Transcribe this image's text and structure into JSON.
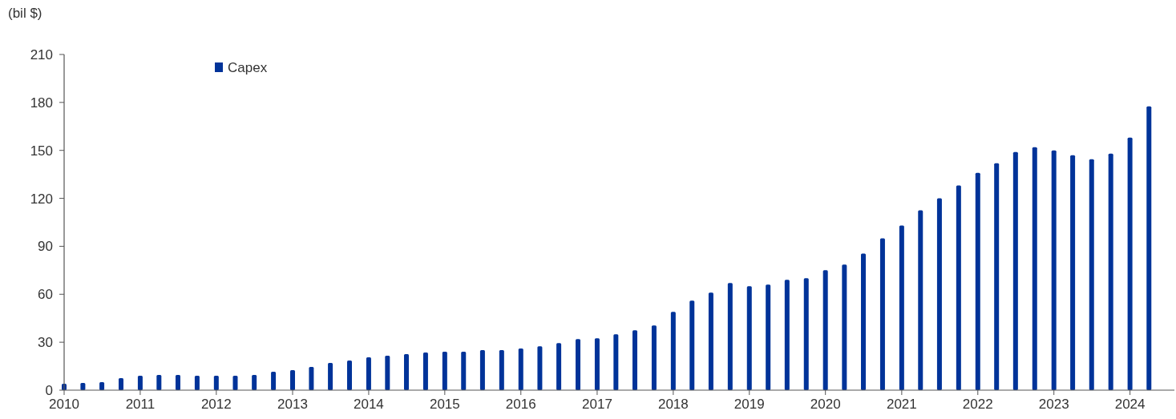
{
  "chart_data": {
    "type": "bar",
    "ylabel": "(bil $)",
    "x": [
      "2010-01",
      "2010-04",
      "2010-07",
      "2010-10",
      "2011-01",
      "2011-04",
      "2011-07",
      "2011-10",
      "2012-01",
      "2012-04",
      "2012-07",
      "2012-10",
      "2013-01",
      "2013-04",
      "2013-07",
      "2013-10",
      "2014-01",
      "2014-04",
      "2014-07",
      "2014-10",
      "2015-01",
      "2015-04",
      "2015-07",
      "2015-10",
      "2016-01",
      "2016-04",
      "2016-07",
      "2016-10",
      "2017-01",
      "2017-04",
      "2017-07",
      "2017-10",
      "2018-01",
      "2018-04",
      "2018-07",
      "2018-10",
      "2019-01",
      "2019-04",
      "2019-07",
      "2019-10",
      "2020-01",
      "2020-04",
      "2020-07",
      "2020-10",
      "2021-01",
      "2021-04",
      "2021-07",
      "2021-10",
      "2022-01",
      "2022-04",
      "2022-07",
      "2022-10",
      "2023-01",
      "2023-04",
      "2023-07",
      "2023-10",
      "2024-01",
      "2024-04"
    ],
    "series": [
      {
        "name": "Capex",
        "color": "#003399",
        "values": [
          4,
          4.5,
          5,
          7.5,
          9,
          9.5,
          9.5,
          9,
          9,
          9,
          9.5,
          11.5,
          12.5,
          14.5,
          17,
          18.5,
          20.5,
          21.5,
          22.5,
          23.5,
          24,
          24,
          25,
          25,
          26,
          27.5,
          29.5,
          32,
          32.5,
          35,
          37.5,
          40.5,
          49,
          56,
          61,
          67,
          65,
          66,
          69,
          70,
          75,
          78.5,
          85.5,
          95,
          103,
          112.5,
          120,
          128,
          136,
          142,
          149,
          152,
          150,
          147,
          144.5,
          148,
          158,
          177.5
        ]
      }
    ],
    "xlim": [
      "2010-01",
      "2024-08"
    ],
    "xticks": [
      "2010",
      "2011",
      "2012",
      "2013",
      "2014",
      "2015",
      "2016",
      "2017",
      "2018",
      "2019",
      "2020",
      "2021",
      "2022",
      "2023",
      "2024"
    ],
    "ylim": [
      0,
      210
    ],
    "yticks": [
      0,
      30,
      60,
      90,
      120,
      150,
      180,
      210
    ],
    "grid": false,
    "legend": "top left"
  }
}
